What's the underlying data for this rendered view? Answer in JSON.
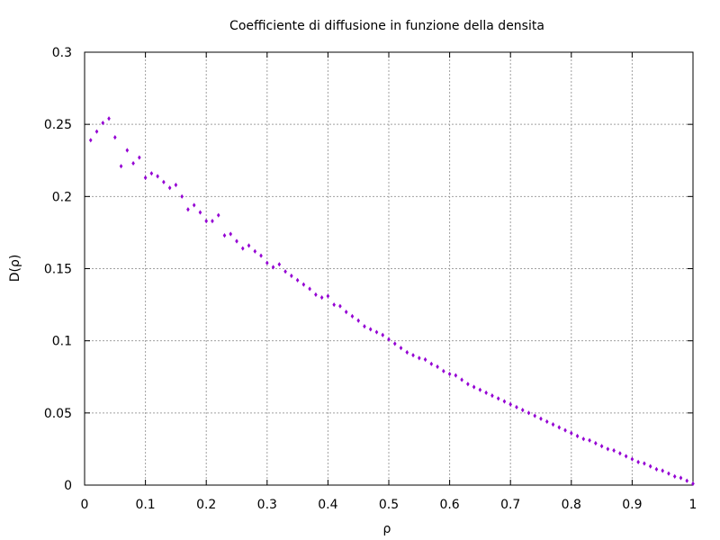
{
  "chart_data": {
    "type": "scatter",
    "title": "Coefficiente di diffusione in funzione della densita",
    "xlabel": "ρ",
    "ylabel": "D(ρ)",
    "xlim": [
      0,
      1
    ],
    "ylim": [
      0,
      0.3
    ],
    "x_ticks": [
      "0",
      "0.1",
      "0.2",
      "0.3",
      "0.4",
      "0.5",
      "0.6",
      "0.7",
      "0.8",
      "0.9",
      "1"
    ],
    "y_ticks": [
      "0",
      "0.05",
      "0.1",
      "0.15",
      "0.2",
      "0.25",
      "0.3"
    ],
    "grid": true,
    "marker_color": "#9400d3",
    "series": [
      {
        "points": [
          [
            0.01,
            0.239
          ],
          [
            0.02,
            0.245
          ],
          [
            0.03,
            0.251
          ],
          [
            0.04,
            0.254
          ],
          [
            0.05,
            0.241
          ],
          [
            0.06,
            0.221
          ],
          [
            0.07,
            0.232
          ],
          [
            0.08,
            0.223
          ],
          [
            0.09,
            0.227
          ],
          [
            0.1,
            0.213
          ],
          [
            0.11,
            0.216
          ],
          [
            0.12,
            0.214
          ],
          [
            0.13,
            0.21
          ],
          [
            0.14,
            0.206
          ],
          [
            0.15,
            0.208
          ],
          [
            0.16,
            0.2
          ],
          [
            0.17,
            0.191
          ],
          [
            0.18,
            0.194
          ],
          [
            0.19,
            0.189
          ],
          [
            0.2,
            0.183
          ],
          [
            0.21,
            0.183
          ],
          [
            0.22,
            0.187
          ],
          [
            0.23,
            0.173
          ],
          [
            0.24,
            0.174
          ],
          [
            0.25,
            0.169
          ],
          [
            0.26,
            0.164
          ],
          [
            0.27,
            0.166
          ],
          [
            0.28,
            0.162
          ],
          [
            0.29,
            0.159
          ],
          [
            0.3,
            0.154
          ],
          [
            0.31,
            0.151
          ],
          [
            0.32,
            0.153
          ],
          [
            0.33,
            0.148
          ],
          [
            0.34,
            0.145
          ],
          [
            0.35,
            0.142
          ],
          [
            0.36,
            0.139
          ],
          [
            0.37,
            0.136
          ],
          [
            0.38,
            0.132
          ],
          [
            0.39,
            0.13
          ],
          [
            0.4,
            0.131
          ],
          [
            0.41,
            0.125
          ],
          [
            0.42,
            0.124
          ],
          [
            0.43,
            0.12
          ],
          [
            0.44,
            0.117
          ],
          [
            0.45,
            0.114
          ],
          [
            0.46,
            0.11
          ],
          [
            0.47,
            0.108
          ],
          [
            0.48,
            0.106
          ],
          [
            0.49,
            0.104
          ],
          [
            0.5,
            0.101
          ],
          [
            0.51,
            0.098
          ],
          [
            0.52,
            0.095
          ],
          [
            0.53,
            0.092
          ],
          [
            0.54,
            0.09
          ],
          [
            0.55,
            0.088
          ],
          [
            0.56,
            0.087
          ],
          [
            0.57,
            0.084
          ],
          [
            0.58,
            0.082
          ],
          [
            0.59,
            0.079
          ],
          [
            0.6,
            0.077
          ],
          [
            0.61,
            0.076
          ],
          [
            0.62,
            0.073
          ],
          [
            0.63,
            0.07
          ],
          [
            0.64,
            0.068
          ],
          [
            0.65,
            0.066
          ],
          [
            0.66,
            0.064
          ],
          [
            0.67,
            0.062
          ],
          [
            0.68,
            0.06
          ],
          [
            0.69,
            0.058
          ],
          [
            0.7,
            0.056
          ],
          [
            0.71,
            0.054
          ],
          [
            0.72,
            0.052
          ],
          [
            0.73,
            0.05
          ],
          [
            0.74,
            0.048
          ],
          [
            0.75,
            0.046
          ],
          [
            0.76,
            0.044
          ],
          [
            0.77,
            0.042
          ],
          [
            0.78,
            0.04
          ],
          [
            0.79,
            0.038
          ],
          [
            0.8,
            0.036
          ],
          [
            0.81,
            0.034
          ],
          [
            0.82,
            0.032
          ],
          [
            0.83,
            0.031
          ],
          [
            0.84,
            0.029
          ],
          [
            0.85,
            0.027
          ],
          [
            0.86,
            0.025
          ],
          [
            0.87,
            0.024
          ],
          [
            0.88,
            0.022
          ],
          [
            0.89,
            0.02
          ],
          [
            0.9,
            0.018
          ],
          [
            0.91,
            0.016
          ],
          [
            0.92,
            0.015
          ],
          [
            0.93,
            0.013
          ],
          [
            0.94,
            0.011
          ],
          [
            0.95,
            0.01
          ],
          [
            0.96,
            0.008
          ],
          [
            0.97,
            0.006
          ],
          [
            0.98,
            0.005
          ],
          [
            0.99,
            0.003
          ],
          [
            1.0,
            0.001
          ]
        ]
      }
    ]
  }
}
